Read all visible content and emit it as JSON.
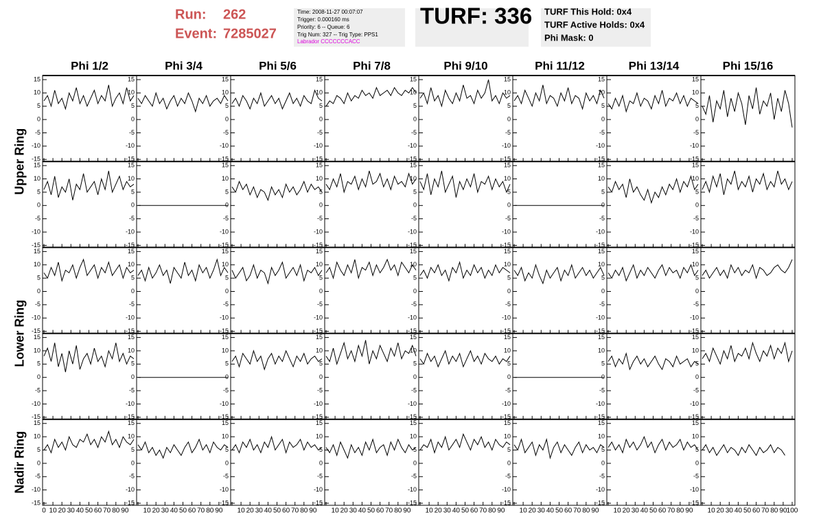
{
  "header": {
    "run_label": "Run:",
    "run": "262",
    "event_label": "Event:",
    "event": "7285027",
    "info": [
      "Time: 2008-11-27 00:07:07",
      "Trigger: 0.000160 ms",
      "Priority: 6 -- Queue: 6",
      "Trig Num: 327 -- Trig Type: PPS1",
      "Labrador CCCCCCCACC"
    ],
    "turf": "TURF: 336",
    "turf_info": [
      "TURF This Hold: 0x4",
      "TURF Active Holds: 0x4",
      "Phi Mask: 0"
    ]
  },
  "chart_data": {
    "type": "line",
    "columns": [
      "Phi 1/2",
      "Phi 3/4",
      "Phi 5/6",
      "Phi 7/8",
      "Phi 9/10",
      "Phi 11/12",
      "Phi 13/14",
      "Phi 15/16"
    ],
    "rows": [
      "Upper Ring",
      "Lower Ring",
      "Nadir Ring"
    ],
    "color": "#000000",
    "xlim": [
      0,
      100
    ],
    "ylim": [
      -15,
      15
    ],
    "xticks": [
      0,
      10,
      20,
      30,
      40,
      50,
      60,
      70,
      80,
      90,
      100
    ],
    "yticks": [
      -15,
      -10,
      -5,
      0,
      5,
      10,
      15
    ],
    "x": [
      0,
      4,
      8,
      12,
      16,
      20,
      24,
      28,
      32,
      36,
      40,
      44,
      48,
      52,
      56,
      60,
      64,
      68,
      72,
      76,
      80,
      84,
      88,
      92,
      96,
      100
    ],
    "panels": [
      [
        [
          7,
          9,
          5,
          11,
          6,
          8,
          4,
          10,
          7,
          12,
          6,
          9,
          5,
          8,
          11,
          6,
          9,
          7,
          13,
          5,
          8,
          10,
          6,
          12,
          7,
          9
        ],
        [
          8,
          6,
          9,
          7,
          5,
          10,
          6,
          8,
          4,
          7,
          9,
          5,
          8,
          6,
          10,
          7,
          3,
          8,
          6,
          9,
          5,
          7,
          8,
          6,
          9,
          7
        ],
        [
          6,
          8,
          5,
          9,
          7,
          4,
          8,
          6,
          10,
          5,
          7,
          9,
          6,
          8,
          4,
          7,
          10,
          6,
          8,
          5,
          9,
          7,
          6,
          11,
          8,
          7
        ],
        [
          5,
          7,
          6,
          9,
          8,
          6,
          10,
          7,
          9,
          8,
          11,
          9,
          10,
          8,
          12,
          9,
          10,
          11,
          9,
          12,
          10,
          9,
          11,
          10,
          12,
          10
        ],
        [
          8,
          10,
          6,
          12,
          7,
          9,
          5,
          11,
          8,
          6,
          10,
          7,
          13,
          8,
          9,
          6,
          11,
          8,
          10,
          15,
          7,
          9,
          6,
          10,
          8,
          9
        ],
        [
          7,
          9,
          6,
          11,
          8,
          5,
          10,
          7,
          13,
          6,
          9,
          8,
          5,
          10,
          7,
          12,
          6,
          9,
          8,
          4,
          10,
          7,
          9,
          6,
          11,
          8
        ],
        [
          6,
          4,
          8,
          5,
          9,
          3,
          7,
          6,
          10,
          5,
          8,
          7,
          4,
          9,
          6,
          11,
          5,
          8,
          7,
          10,
          6,
          9,
          5,
          8,
          7,
          6
        ],
        [
          5,
          2,
          9,
          -1,
          7,
          4,
          11,
          1,
          8,
          3,
          10,
          6,
          -2,
          9,
          4,
          12,
          2,
          7,
          5,
          10,
          0,
          8,
          3,
          11,
          6,
          -3
        ]
      ],
      [
        [
          6,
          9,
          4,
          11,
          3,
          7,
          5,
          10,
          2,
          8,
          6,
          12,
          5,
          7,
          9,
          4,
          10,
          6,
          13,
          5,
          8,
          11,
          6,
          9,
          7,
          8
        ],
        [
          0,
          0,
          0,
          0,
          0,
          0,
          0,
          0,
          0,
          0,
          0,
          0,
          0,
          0,
          0,
          0,
          0,
          0,
          0,
          0,
          0,
          0,
          0,
          0,
          0,
          0
        ],
        [
          7,
          5,
          9,
          6,
          8,
          4,
          7,
          3,
          6,
          5,
          2,
          7,
          4,
          6,
          3,
          8,
          5,
          7,
          4,
          6,
          9,
          5,
          8,
          6,
          7,
          5
        ],
        [
          8,
          6,
          10,
          7,
          12,
          5,
          9,
          8,
          11,
          6,
          10,
          7,
          13,
          8,
          9,
          12,
          7,
          10,
          6,
          11,
          8,
          9,
          7,
          12,
          8,
          10
        ],
        [
          9,
          6,
          12,
          4,
          10,
          7,
          13,
          5,
          8,
          11,
          3,
          9,
          6,
          10,
          7,
          12,
          5,
          9,
          8,
          11,
          6,
          10,
          7,
          9,
          5,
          8
        ],
        [
          0,
          0,
          0,
          0,
          0,
          0,
          0,
          0,
          0,
          0,
          0,
          0,
          0,
          0,
          0,
          0,
          0,
          0,
          0,
          0,
          0,
          0,
          0,
          0,
          0,
          0
        ],
        [
          7,
          5,
          9,
          6,
          8,
          3,
          10,
          5,
          7,
          4,
          2,
          6,
          1,
          5,
          3,
          7,
          4,
          8,
          6,
          10,
          5,
          9,
          7,
          11,
          6,
          8
        ],
        [
          6,
          9,
          5,
          11,
          7,
          12,
          4,
          10,
          8,
          13,
          6,
          9,
          7,
          11,
          5,
          10,
          8,
          12,
          6,
          9,
          7,
          13,
          8,
          10,
          6,
          9
        ]
      ],
      [
        [
          7,
          5,
          9,
          6,
          11,
          4,
          8,
          7,
          10,
          5,
          9,
          12,
          6,
          8,
          10,
          5,
          9,
          7,
          11,
          6,
          8,
          10,
          5,
          9,
          7,
          8
        ],
        [
          6,
          8,
          4,
          9,
          5,
          7,
          10,
          6,
          8,
          3,
          9,
          7,
          5,
          11,
          6,
          8,
          4,
          10,
          7,
          9,
          5,
          8,
          12,
          6,
          9,
          7
        ],
        [
          8,
          5,
          7,
          9,
          4,
          6,
          10,
          5,
          8,
          7,
          3,
          9,
          6,
          8,
          11,
          5,
          7,
          9,
          6,
          10,
          4,
          8,
          7,
          9,
          6,
          8
        ],
        [
          7,
          9,
          5,
          11,
          8,
          6,
          10,
          7,
          12,
          5,
          9,
          8,
          11,
          6,
          10,
          7,
          9,
          12,
          8,
          10,
          6,
          11,
          9,
          7,
          10,
          8
        ],
        [
          6,
          8,
          5,
          9,
          7,
          10,
          6,
          8,
          4,
          9,
          7,
          11,
          5,
          8,
          6,
          10,
          7,
          9,
          5,
          8,
          6,
          10,
          7,
          9,
          8,
          7
        ],
        [
          8,
          6,
          9,
          4,
          7,
          5,
          10,
          6,
          3,
          8,
          5,
          7,
          9,
          4,
          8,
          6,
          10,
          5,
          7,
          9,
          6,
          8,
          5,
          7,
          9,
          6
        ],
        [
          7,
          5,
          8,
          6,
          9,
          4,
          7,
          10,
          5,
          8,
          6,
          9,
          7,
          5,
          8,
          10,
          6,
          9,
          7,
          8,
          5,
          9,
          7,
          10,
          6,
          8
        ],
        [
          6,
          8,
          5,
          7,
          9,
          6,
          8,
          5,
          10,
          7,
          9,
          6,
          8,
          7,
          10,
          5,
          9,
          8,
          6,
          7,
          9,
          10,
          8,
          7,
          9,
          12
        ]
      ],
      [
        [
          8,
          11,
          6,
          13,
          4,
          9,
          2,
          10,
          5,
          12,
          3,
          7,
          9,
          5,
          11,
          6,
          8,
          4,
          10,
          7,
          13,
          6,
          9,
          5,
          8,
          7
        ],
        [
          0,
          0,
          0,
          0,
          0,
          0,
          0,
          0,
          0,
          0,
          0,
          0,
          0,
          0,
          0,
          0,
          0,
          0,
          0,
          0,
          0,
          0,
          0,
          0,
          0,
          0
        ],
        [
          6,
          8,
          4,
          9,
          7,
          5,
          10,
          6,
          8,
          3,
          7,
          9,
          5,
          8,
          6,
          10,
          7,
          4,
          8,
          6,
          9,
          5,
          7,
          8,
          6,
          7
        ],
        [
          8,
          6,
          11,
          5,
          9,
          13,
          7,
          10,
          6,
          12,
          8,
          14,
          5,
          10,
          7,
          12,
          9,
          6,
          11,
          8,
          13,
          7,
          10,
          9,
          12,
          8
        ],
        [
          7,
          5,
          9,
          6,
          8,
          4,
          7,
          10,
          5,
          8,
          6,
          9,
          4,
          7,
          10,
          6,
          8,
          5,
          9,
          7,
          6,
          8,
          5,
          7,
          6,
          8
        ],
        [
          0,
          0,
          0,
          0,
          0,
          0,
          0,
          0,
          0,
          0,
          0,
          0,
          0,
          0,
          0,
          0,
          0,
          0,
          0,
          0,
          0,
          0,
          0,
          0,
          0,
          0
        ],
        [
          6,
          8,
          4,
          7,
          5,
          9,
          3,
          6,
          8,
          5,
          7,
          4,
          6,
          8,
          5,
          3,
          7,
          6,
          4,
          8,
          5,
          6,
          7,
          4,
          6,
          5
        ],
        [
          7,
          9,
          6,
          11,
          8,
          5,
          10,
          7,
          12,
          6,
          9,
          8,
          11,
          7,
          13,
          9,
          6,
          10,
          8,
          12,
          7,
          11,
          9,
          13,
          6,
          10
        ]
      ],
      [
        [
          5,
          7,
          4,
          9,
          6,
          8,
          5,
          10,
          7,
          6,
          9,
          8,
          11,
          7,
          9,
          6,
          10,
          8,
          12,
          7,
          9,
          6,
          10,
          8,
          7,
          9
        ],
        [
          7,
          5,
          8,
          4,
          6,
          3,
          5,
          2,
          6,
          4,
          7,
          5,
          3,
          6,
          8,
          4,
          6,
          9,
          5,
          7,
          4,
          8,
          6,
          5,
          7,
          6
        ],
        [
          5,
          7,
          4,
          8,
          6,
          9,
          5,
          7,
          4,
          8,
          6,
          10,
          5,
          7,
          9,
          4,
          8,
          6,
          7,
          9,
          5,
          8,
          6,
          7,
          5,
          6
        ],
        [
          6,
          4,
          7,
          3,
          8,
          5,
          2,
          7,
          4,
          6,
          3,
          8,
          5,
          9,
          4,
          6,
          7,
          3,
          8,
          5,
          9,
          6,
          4,
          7,
          5,
          6
        ],
        [
          5,
          7,
          6,
          9,
          4,
          8,
          6,
          10,
          5,
          7,
          9,
          6,
          11,
          8,
          5,
          9,
          7,
          10,
          6,
          8,
          5,
          9,
          7,
          6,
          8,
          7
        ],
        [
          7,
          5,
          9,
          4,
          6,
          8,
          3,
          7,
          5,
          9,
          2,
          6,
          8,
          4,
          7,
          5,
          3,
          6,
          8,
          4,
          7,
          5,
          6,
          4,
          7,
          6
        ],
        [
          6,
          8,
          5,
          7,
          4,
          9,
          6,
          8,
          5,
          7,
          10,
          6,
          8,
          4,
          7,
          9,
          5,
          8,
          6,
          7,
          9,
          5,
          8,
          6,
          7,
          5
        ],
        [
          5,
          7,
          4,
          6,
          3,
          5,
          7,
          4,
          6,
          5,
          3,
          6,
          4,
          7,
          5,
          3,
          6,
          4,
          5,
          7,
          4,
          6,
          5,
          3,
          null,
          null
        ]
      ]
    ]
  }
}
